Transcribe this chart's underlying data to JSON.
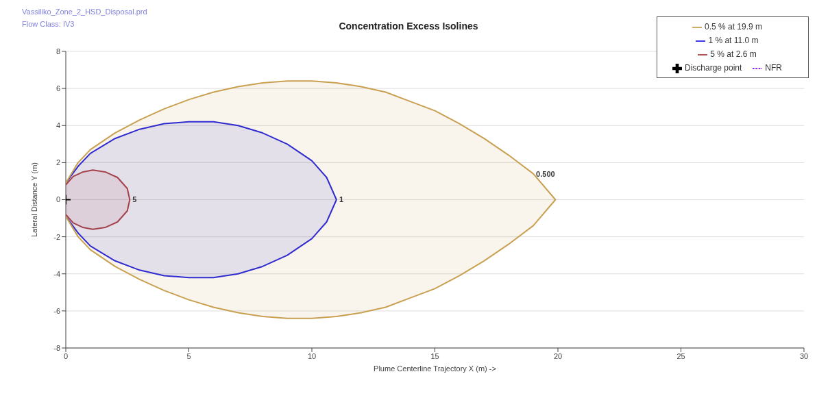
{
  "chart_data": {
    "type": "line",
    "title": "Concentration Excess Isolines",
    "xlabel": "Plume Centerline Trajectory X (m) ->",
    "ylabel": "Lateral Distance Y (m)",
    "annotations": [
      "Vassiliko_Zone_2_HSD_Disposal.prd",
      "Flow Class: IV3",
      {
        "text": "5",
        "x": 2.6,
        "y": 0
      },
      {
        "text": "1",
        "x": 11.0,
        "y": 0
      },
      {
        "text": "0.500",
        "x": 19,
        "y": 1.4
      }
    ],
    "xlim": [
      0,
      30
    ],
    "xticks": [
      0,
      5,
      10,
      15,
      20,
      25,
      30
    ],
    "ylim": [
      -8,
      8
    ],
    "yticks": [
      -8,
      -6,
      -4,
      -2,
      0,
      2,
      4,
      6,
      8
    ],
    "grid": "y",
    "legend": "top right",
    "marker": "none",
    "line_style": "solid",
    "series": [
      {
        "name": "5 % at 2.6 m",
        "color": "#b03a3a",
        "x": [
          0,
          0.3,
          0.7,
          1.1,
          1.6,
          2.1,
          2.5,
          2.6,
          2.5,
          2.1,
          1.6,
          1.1,
          0.7,
          0.3,
          0
        ],
        "values": [
          0.8,
          1.25,
          1.5,
          1.6,
          1.5,
          1.2,
          0.6,
          0,
          -0.6,
          -1.2,
          -1.5,
          -1.6,
          -1.5,
          -1.25,
          -0.8
        ]
      },
      {
        "name": "1 % at 11.0 m",
        "color": "#1f1fe0",
        "x": [
          0,
          0.5,
          1,
          2,
          3,
          4,
          5,
          6,
          7,
          8,
          9,
          10,
          10.6,
          11,
          10.6,
          10,
          9,
          8,
          7,
          6,
          5,
          4,
          3,
          2,
          1,
          0.5,
          0
        ],
        "values": [
          0.9,
          1.8,
          2.5,
          3.3,
          3.8,
          4.1,
          4.2,
          4.2,
          4.0,
          3.6,
          3.0,
          2.1,
          1.2,
          0,
          -1.2,
          -2.1,
          -3.0,
          -3.6,
          -4.0,
          -4.2,
          -4.2,
          -4.1,
          -3.8,
          -3.3,
          -2.5,
          -1.8,
          -0.9
        ]
      },
      {
        "name": "0.5 % at 19.9 m",
        "color": "#c8a050",
        "x": [
          0,
          0.5,
          1,
          2,
          3,
          4,
          5,
          6,
          7,
          8,
          9,
          10,
          11,
          12,
          13,
          14,
          15,
          16,
          17,
          18,
          19,
          19.9,
          19,
          18,
          17,
          16,
          15,
          14,
          13,
          12,
          11,
          10,
          9,
          8,
          7,
          6,
          5,
          4,
          3,
          2,
          1,
          0.5,
          0
        ],
        "values": [
          0.9,
          2.0,
          2.7,
          3.6,
          4.3,
          4.9,
          5.4,
          5.8,
          6.1,
          6.3,
          6.4,
          6.4,
          6.3,
          6.1,
          5.8,
          5.3,
          4.8,
          4.1,
          3.3,
          2.4,
          1.4,
          0,
          -1.4,
          -2.4,
          -3.3,
          -4.1,
          -4.8,
          -5.3,
          -5.8,
          -6.1,
          -6.3,
          -6.4,
          -6.4,
          -6.3,
          -6.1,
          -5.8,
          -5.4,
          -4.9,
          -4.3,
          -3.6,
          -2.7,
          -2.0,
          -0.9
        ]
      },
      {
        "name": "NFR",
        "color": "#8000ff",
        "line_style": "dashed"
      },
      {
        "name": "Discharge point",
        "type": "scatter",
        "marker": "cross",
        "color": "#000000",
        "x": [
          0
        ],
        "values": [
          0
        ]
      }
    ]
  }
}
